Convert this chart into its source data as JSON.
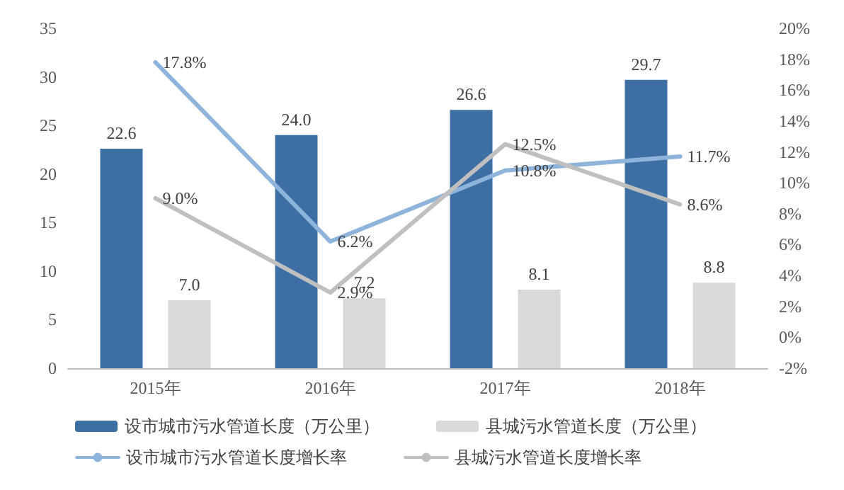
{
  "chart_data": {
    "type": "bar",
    "categories": [
      "2015年",
      "2016年",
      "2017年",
      "2018年"
    ],
    "series": [
      {
        "name": "设市城市污水管道长度（万公里）",
        "color": "#3d6fa5",
        "values": [
          22.6,
          24.0,
          26.6,
          29.7
        ],
        "value_labels": [
          "22.6",
          "24.0",
          "26.6",
          "29.7"
        ]
      },
      {
        "name": "县城污水管道长度（万公里）",
        "color": "#d9d9d9",
        "values": [
          7.0,
          7.2,
          8.1,
          8.8
        ],
        "value_labels": [
          "7.0",
          "7.2",
          "8.1",
          "8.8"
        ]
      },
      {
        "name": "设市城市污水管道长度增长率",
        "type": "line",
        "axis": "y2",
        "color": "#8fb4dc",
        "values": [
          17.8,
          6.2,
          10.8,
          11.7
        ],
        "value_labels": [
          "17.8%",
          "6.2%",
          "10.8%",
          "11.7%"
        ]
      },
      {
        "name": "县城污水管道长度增长率",
        "type": "line",
        "axis": "y2",
        "color": "#bfbfbf",
        "values": [
          9.0,
          2.9,
          12.5,
          8.6
        ],
        "value_labels": [
          "9.0%",
          "2.9%",
          "12.5%",
          "8.6%"
        ]
      }
    ],
    "ylim": [
      0,
      35
    ],
    "yticks": [
      0,
      5,
      10,
      15,
      20,
      25,
      30,
      35
    ],
    "y2lim": [
      -2,
      20
    ],
    "y2ticks": [
      {
        "value": -2,
        "label": "-2%"
      },
      {
        "value": 0,
        "label": "0%"
      },
      {
        "value": 2,
        "label": "2%"
      },
      {
        "value": 4,
        "label": "4%"
      },
      {
        "value": 6,
        "label": "6%"
      },
      {
        "value": 8,
        "label": "8%"
      },
      {
        "value": 10,
        "label": "10%"
      },
      {
        "value": 12,
        "label": "12%"
      },
      {
        "value": 14,
        "label": "14%"
      },
      {
        "value": 16,
        "label": "16%"
      },
      {
        "value": 18,
        "label": "18%"
      },
      {
        "value": 20,
        "label": "20%"
      }
    ],
    "grid": false,
    "legend": "bottom",
    "marker": "none",
    "line_style": "solid"
  }
}
